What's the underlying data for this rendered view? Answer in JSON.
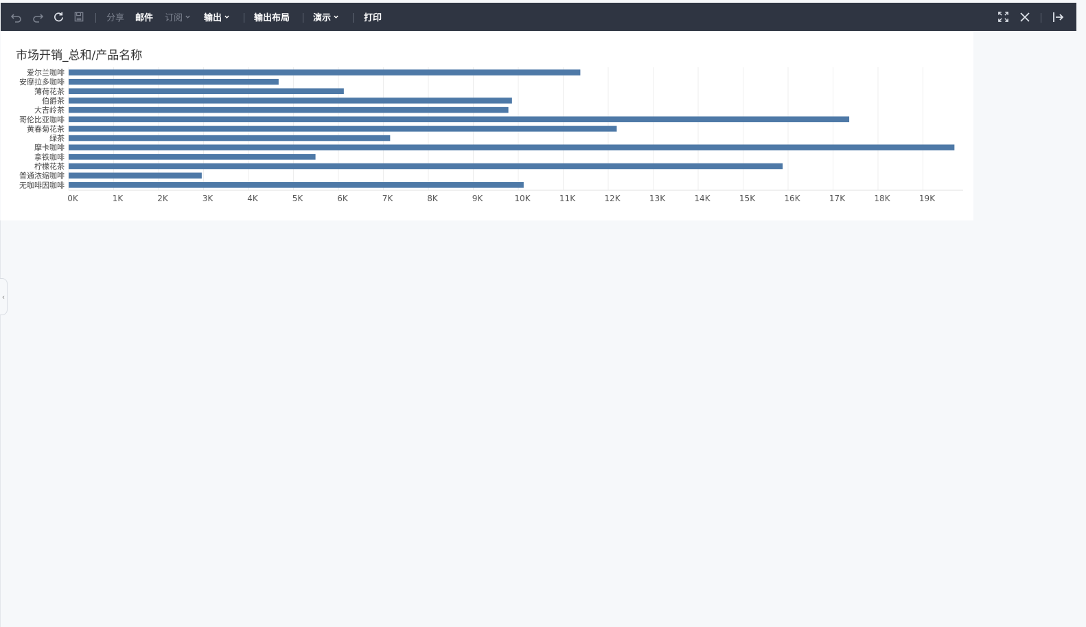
{
  "toolbar": {
    "share": "分享",
    "mail": "邮件",
    "subscribe": "订阅",
    "output": "输出",
    "output_layout": "输出布局",
    "present": "演示",
    "print": "打印"
  },
  "chart_data": {
    "type": "bar",
    "orientation": "horizontal",
    "title": "市场开销_总和/产品名称",
    "categories": [
      "爱尔兰咖啡",
      "安摩拉多咖啡",
      "薄荷花茶",
      "伯爵茶",
      "大吉岭茶",
      "哥伦比亚咖啡",
      "黄春菊花茶",
      "绿茶",
      "摩卡咖啡",
      "拿铁咖啡",
      "柠檬花茶",
      "普通浓缩咖啡",
      "无咖啡因咖啡"
    ],
    "values": [
      11380,
      4670,
      6120,
      9860,
      9780,
      17360,
      12190,
      7150,
      19700,
      5490,
      15880,
      2960,
      10120
    ],
    "xlim": [
      0,
      20000
    ],
    "xticks": [
      "0K",
      "1K",
      "2K",
      "3K",
      "4K",
      "5K",
      "6K",
      "7K",
      "8K",
      "9K",
      "10K",
      "11K",
      "12K",
      "13K",
      "14K",
      "15K",
      "16K",
      "17K",
      "18K",
      "19K"
    ],
    "bar_color": "#4e79a7",
    "grid": true
  }
}
